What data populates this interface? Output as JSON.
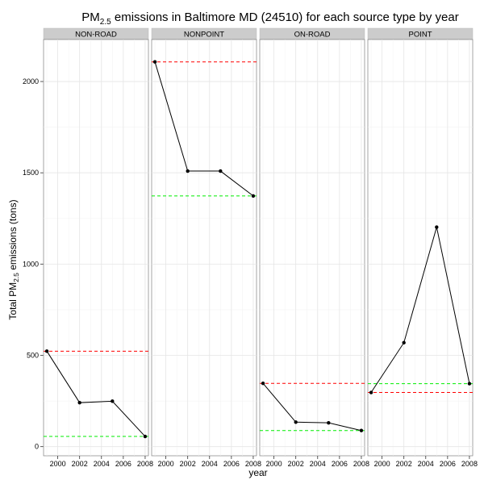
{
  "chart_data": {
    "type": "line",
    "title": {
      "prefix": "PM",
      "subscript": "2.5",
      "suffix": " emissions in Baltimore MD (24510) for each source type by year"
    },
    "xlabel": "year",
    "ylabel": {
      "prefix": "Total PM",
      "subscript": "2.5",
      "suffix": " emissions (tons)"
    },
    "xlim": [
      1998.7,
      2008.3
    ],
    "ylim": [
      -50,
      2230
    ],
    "xticks": [
      2000,
      2002,
      2004,
      2006,
      2008
    ],
    "yticks": [
      0,
      500,
      1000,
      1500,
      2000
    ],
    "grid": true,
    "reference_line_colors": {
      "first_year": "#ff0000",
      "last_year": "#00ee00"
    },
    "series_color": "#000000",
    "panels": [
      {
        "name": "NON-ROAD",
        "x": [
          1999,
          2002,
          2005,
          2008
        ],
        "y": [
          522.94,
          240.85,
          248.93,
          55.82
        ]
      },
      {
        "name": "NONPOINT",
        "x": [
          1999,
          2002,
          2005,
          2008
        ],
        "y": [
          2107.63,
          1509.5,
          1509.5,
          1373.21
        ]
      },
      {
        "name": "ON-ROAD",
        "x": [
          1999,
          2002,
          2005,
          2008
        ],
        "y": [
          346.82,
          134.31,
          130.43,
          88.28
        ]
      },
      {
        "name": "POINT",
        "x": [
          1999,
          2002,
          2005,
          2008
        ],
        "y": [
          296.8,
          569.26,
          1202.49,
          344.98
        ]
      }
    ]
  }
}
